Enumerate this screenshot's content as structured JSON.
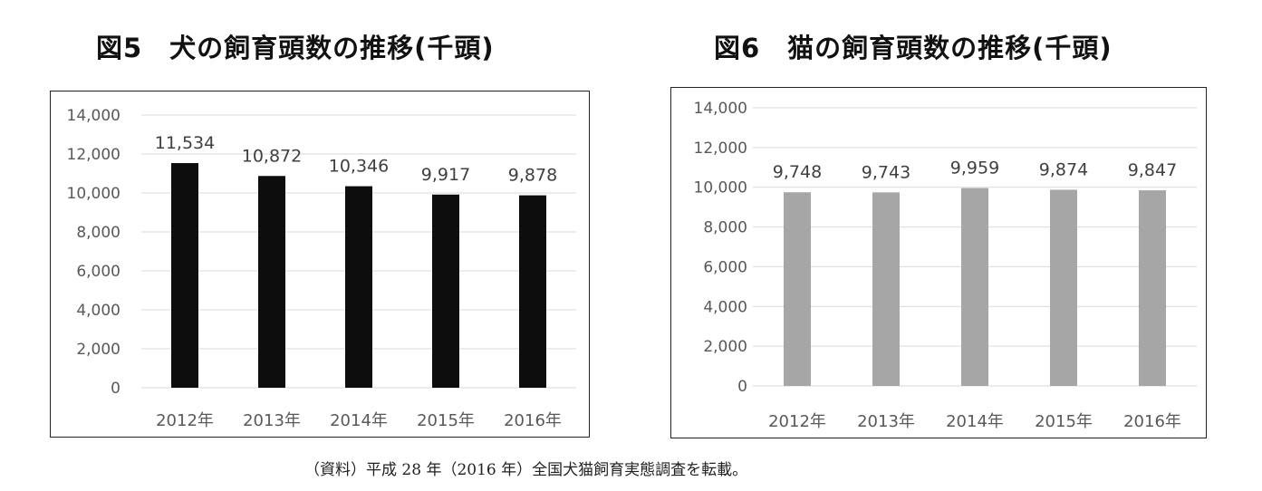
{
  "charts": [
    {
      "title": "図5　犬の飼育頭数の推移(千頭)",
      "bar_color": "#0d0d0d"
    },
    {
      "title": "図6　猫の飼育頭数の推移(千頭)",
      "bar_color": "#a6a6a6"
    }
  ],
  "footnote": "（資料）平成 28 年（2016 年）全国犬猫飼育実態調査を転載。",
  "chart_data": [
    {
      "type": "bar",
      "title": "図5　犬の飼育頭数の推移(千頭)",
      "categories": [
        "2012年",
        "2013年",
        "2014年",
        "2015年",
        "2016年"
      ],
      "values": [
        11534,
        10872,
        10346,
        9917,
        9878
      ],
      "data_labels": [
        "11,534",
        "10,872",
        "10,346",
        "9,917",
        "9,878"
      ],
      "ylim": [
        0,
        14000
      ],
      "yticks": [
        0,
        2000,
        4000,
        6000,
        8000,
        10000,
        12000,
        14000
      ],
      "ytick_labels": [
        "0",
        "2,000",
        "4,000",
        "6,000",
        "8,000",
        "10,000",
        "12,000",
        "14,000"
      ],
      "grid": true,
      "legend": "none"
    },
    {
      "type": "bar",
      "title": "図6　猫の飼育頭数の推移(千頭)",
      "categories": [
        "2012年",
        "2013年",
        "2014年",
        "2015年",
        "2016年"
      ],
      "values": [
        9748,
        9743,
        9959,
        9874,
        9847
      ],
      "data_labels": [
        "9,748",
        "9,743",
        "9,959",
        "9,874",
        "9,847"
      ],
      "ylim": [
        0,
        14000
      ],
      "yticks": [
        0,
        2000,
        4000,
        6000,
        8000,
        10000,
        12000,
        14000
      ],
      "ytick_labels": [
        "0",
        "2,000",
        "4,000",
        "6,000",
        "8,000",
        "10,000",
        "12,000",
        "14,000"
      ],
      "grid": true,
      "legend": "none"
    }
  ]
}
